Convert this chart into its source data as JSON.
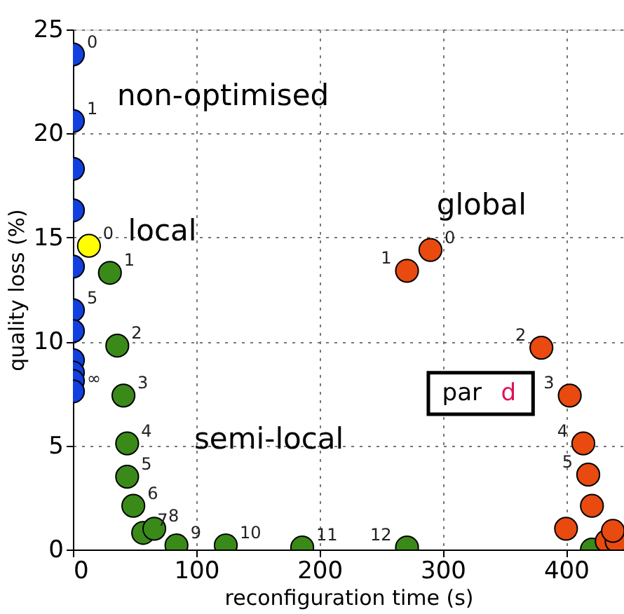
{
  "chart_data": {
    "type": "scatter",
    "xlabel": "reconfiguration time (s)",
    "ylabel": "quality loss (%)",
    "xlim": [
      0,
      447
    ],
    "ylim": [
      0,
      25
    ],
    "xticks": [
      0,
      100,
      200,
      300,
      400
    ],
    "yticks": [
      0,
      5,
      10,
      15,
      20,
      25
    ],
    "grid": true,
    "legend": false,
    "marker": "circle",
    "annotations": [
      "non-optimised",
      "local",
      "global",
      "semi-local",
      "par d",
      {
        "text": "0",
        "x": 0,
        "y": 23.8
      },
      {
        "text": "1",
        "x": 0,
        "y": 20.6
      },
      {
        "text": "5",
        "x": 0,
        "y": 11.5
      },
      {
        "text": "∞",
        "x": 0,
        "y": 7.6
      },
      {
        "text": "0",
        "x": 13,
        "y": 14.6
      },
      {
        "text": "1",
        "x": 30,
        "y": 13.3
      },
      {
        "text": "2",
        "x": 36,
        "y": 9.8
      },
      {
        "text": "3",
        "x": 41,
        "y": 7.4
      },
      {
        "text": "4",
        "x": 44,
        "y": 5.1
      },
      {
        "text": "5",
        "x": 44,
        "y": 3.5
      },
      {
        "text": "6",
        "x": 49,
        "y": 2.1
      },
      {
        "text": "7",
        "x": 57,
        "y": 0.8
      },
      {
        "text": "8",
        "x": 66,
        "y": 1.0
      },
      {
        "text": "9",
        "x": 84,
        "y": 0.2
      },
      {
        "text": "10",
        "x": 124,
        "y": 0.2
      },
      {
        "text": "11",
        "x": 186,
        "y": 0.1
      },
      {
        "text": "12",
        "x": 271,
        "y": 0.1
      },
      {
        "text": "0",
        "x": 290,
        "y": 14.4
      },
      {
        "text": "1",
        "x": 271,
        "y": 13.4
      },
      {
        "text": "2",
        "x": 380,
        "y": 9.7
      },
      {
        "text": "3",
        "x": 403,
        "y": 7.4
      },
      {
        "text": "4",
        "x": 414,
        "y": 5.1
      },
      {
        "text": "5",
        "x": 418,
        "y": 3.6
      }
    ],
    "series": [
      {
        "color": "#1040e0",
        "x": [
          0,
          0,
          0,
          0,
          0,
          0,
          0,
          0,
          0,
          0,
          0
        ],
        "values": [
          23.8,
          20.6,
          18.3,
          16.3,
          13.6,
          11.5,
          10.5,
          9.1,
          8.5,
          8.1,
          7.6
        ]
      },
      {
        "color": "#ffff00",
        "x": [
          13
        ],
        "values": [
          14.6
        ]
      },
      {
        "color": "#3a8a1a",
        "x": [
          30,
          36,
          41,
          44,
          44,
          49,
          57,
          66,
          84,
          124,
          186,
          271,
          421
        ],
        "values": [
          13.3,
          9.8,
          7.4,
          5.1,
          3.5,
          2.1,
          0.8,
          1.0,
          0.2,
          0.2,
          0.1,
          0.1,
          0
        ]
      },
      {
        "color": "#e84a10",
        "x": [
          290,
          271,
          380,
          403,
          414,
          418,
          421,
          400,
          433,
          441,
          438
        ],
        "values": [
          14.4,
          13.4,
          9.7,
          7.4,
          5.1,
          3.6,
          2.1,
          1.0,
          0.4,
          0.4,
          0.9
        ]
      }
    ]
  }
}
